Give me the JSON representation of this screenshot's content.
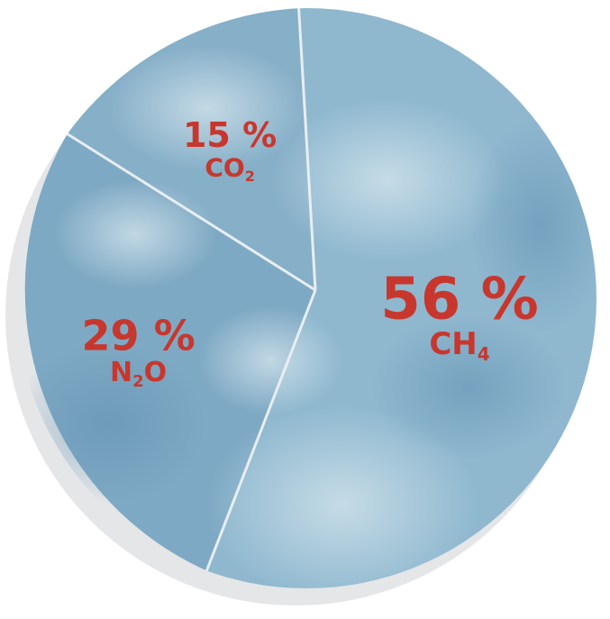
{
  "chart_data": {
    "type": "pie",
    "slices": [
      {
        "label_value": "56 %",
        "label_gas": "CH",
        "label_sub": "4",
        "label_tail": "",
        "value": 56
      },
      {
        "label_value": "29 %",
        "label_gas": "N",
        "label_sub": "2",
        "label_tail": "O",
        "value": 29
      },
      {
        "label_value": "15 %",
        "label_gas": "CO",
        "label_sub": "2",
        "label_tail": "",
        "value": 15
      }
    ],
    "label_color": "#c8372d",
    "divider_color": "#e8eef2",
    "slice_colors": [
      "#8fb8cf",
      "#7ea9c4",
      "#86afc8"
    ],
    "shadow_color": "#e4e6e8"
  }
}
